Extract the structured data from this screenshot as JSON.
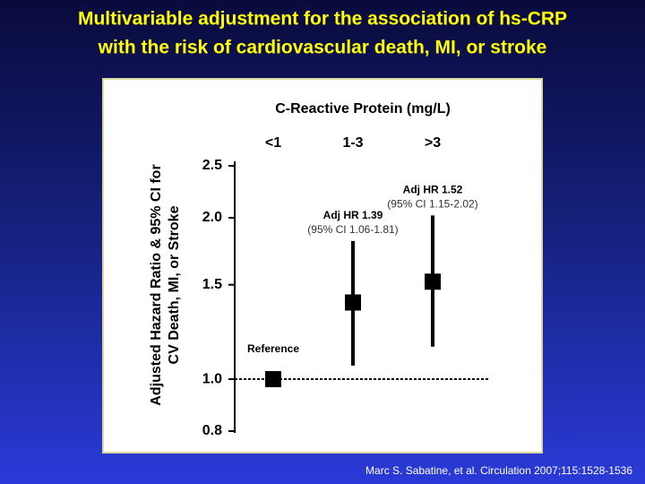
{
  "title": [
    "Multivariable adjustment for the association of hs-CRP",
    "with the risk of cardiovascular death, MI, or stroke"
  ],
  "citation": "Marc S. Sabatine, et al. Circulation 2007;115:1528-1536",
  "chart_data": {
    "type": "forest",
    "title": "C-Reactive Protein (mg/L)",
    "y_label": [
      "Adjusted Hazard Ratio & 95% CI for",
      "CV Death, MI, or Stroke"
    ],
    "categories": [
      "<1",
      "1-3",
      ">3"
    ],
    "values": [
      1.0,
      1.39,
      1.52
    ],
    "value_labels": [
      "Reference",
      "Adj HR 1.39",
      "Adj HR 1.52"
    ],
    "ci_lower": [
      null,
      1.06,
      1.15
    ],
    "ci_upper": [
      null,
      1.81,
      2.02
    ],
    "ci_labels": [
      null,
      "(95% CI 1.06-1.81)",
      "(95% CI 1.15-2.02)"
    ],
    "color": "#000000",
    "yscale": "log",
    "ylim": [
      0.8,
      2.5
    ],
    "yticks": [
      0.8,
      {
        "value": 1.0,
        "label": "1.0"
      },
      1.5,
      {
        "value": 2.0,
        "label": "2.0"
      },
      2.5
    ]
  }
}
